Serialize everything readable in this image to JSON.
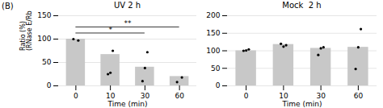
{
  "title": "(B)",
  "chart_data": [
    {
      "type": "bar",
      "title": "UV 2 h",
      "xlabel": "Time (min)",
      "ylabel": "Ratio (%)\n(RNase E/RbcL)",
      "categories": [
        "0",
        "10",
        "30",
        "60"
      ],
      "values": [
        100,
        67,
        40,
        20
      ],
      "dots": [
        [
          100,
          97
        ],
        [
          25,
          28,
          75
        ],
        [
          10,
          38,
          72
        ],
        [
          8,
          18
        ]
      ],
      "color": "#c8c8c8",
      "ylim": [
        0,
        150
      ],
      "yticks": [
        0,
        50,
        100,
        150
      ],
      "grid": true,
      "annotations": [
        {
          "text": "*",
          "from": "0",
          "to": "30",
          "y": 113
        },
        {
          "text": "**",
          "from": "0",
          "to": "60",
          "y": 126
        }
      ]
    },
    {
      "type": "bar",
      "title": "Mock  2 h",
      "xlabel": "Time (min)",
      "categories": [
        "0",
        "10",
        "30",
        "60"
      ],
      "values": [
        100,
        118,
        107,
        110
      ],
      "dots": [
        [
          100,
          101,
          104
        ],
        [
          120,
          112,
          116
        ],
        [
          88,
          107,
          110
        ],
        [
          48,
          110,
          162
        ]
      ],
      "color": "#c8c8c8",
      "ylim": [
        0,
        200
      ],
      "yticks": [
        0,
        50,
        100,
        150,
        200
      ],
      "grid": true
    }
  ]
}
